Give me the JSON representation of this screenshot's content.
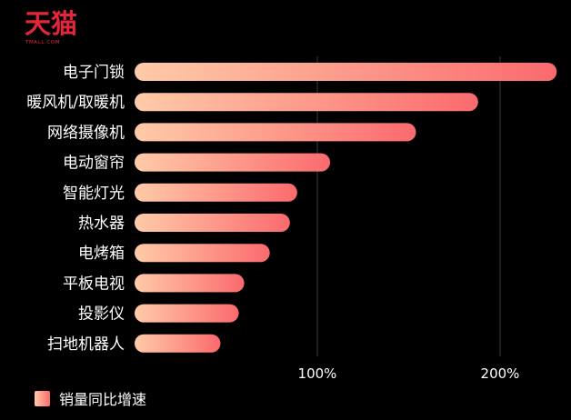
{
  "logo": {
    "text": "天猫",
    "subtext": "TMALL.COM"
  },
  "colors": {
    "background": "#000000",
    "bar_start": "#ffcba8",
    "bar_end": "#fb6a6e",
    "grid": "#3a3a3a",
    "text": "#ffffff",
    "logo": "#e3263a"
  },
  "legend": {
    "label": "销量同比增速"
  },
  "chart_data": {
    "type": "bar",
    "orientation": "horizontal",
    "categories": [
      "电子门锁",
      "暖风机/取暖机",
      "网络摄像机",
      "电动窗帘",
      "智能灯光",
      "热水器",
      "电烤箱",
      "平板电视",
      "投影仪",
      "扫地机器人"
    ],
    "series": [
      {
        "name": "销量同比增速",
        "values": [
          231,
          188,
          154,
          107,
          89,
          85,
          74,
          60,
          57,
          47
        ]
      }
    ],
    "unit": "%",
    "xticks": [
      100,
      200
    ],
    "xtick_labels": [
      "100%",
      "200%"
    ],
    "xlim": [
      0,
      235
    ],
    "grid": true,
    "legend_position": "bottom-left"
  }
}
